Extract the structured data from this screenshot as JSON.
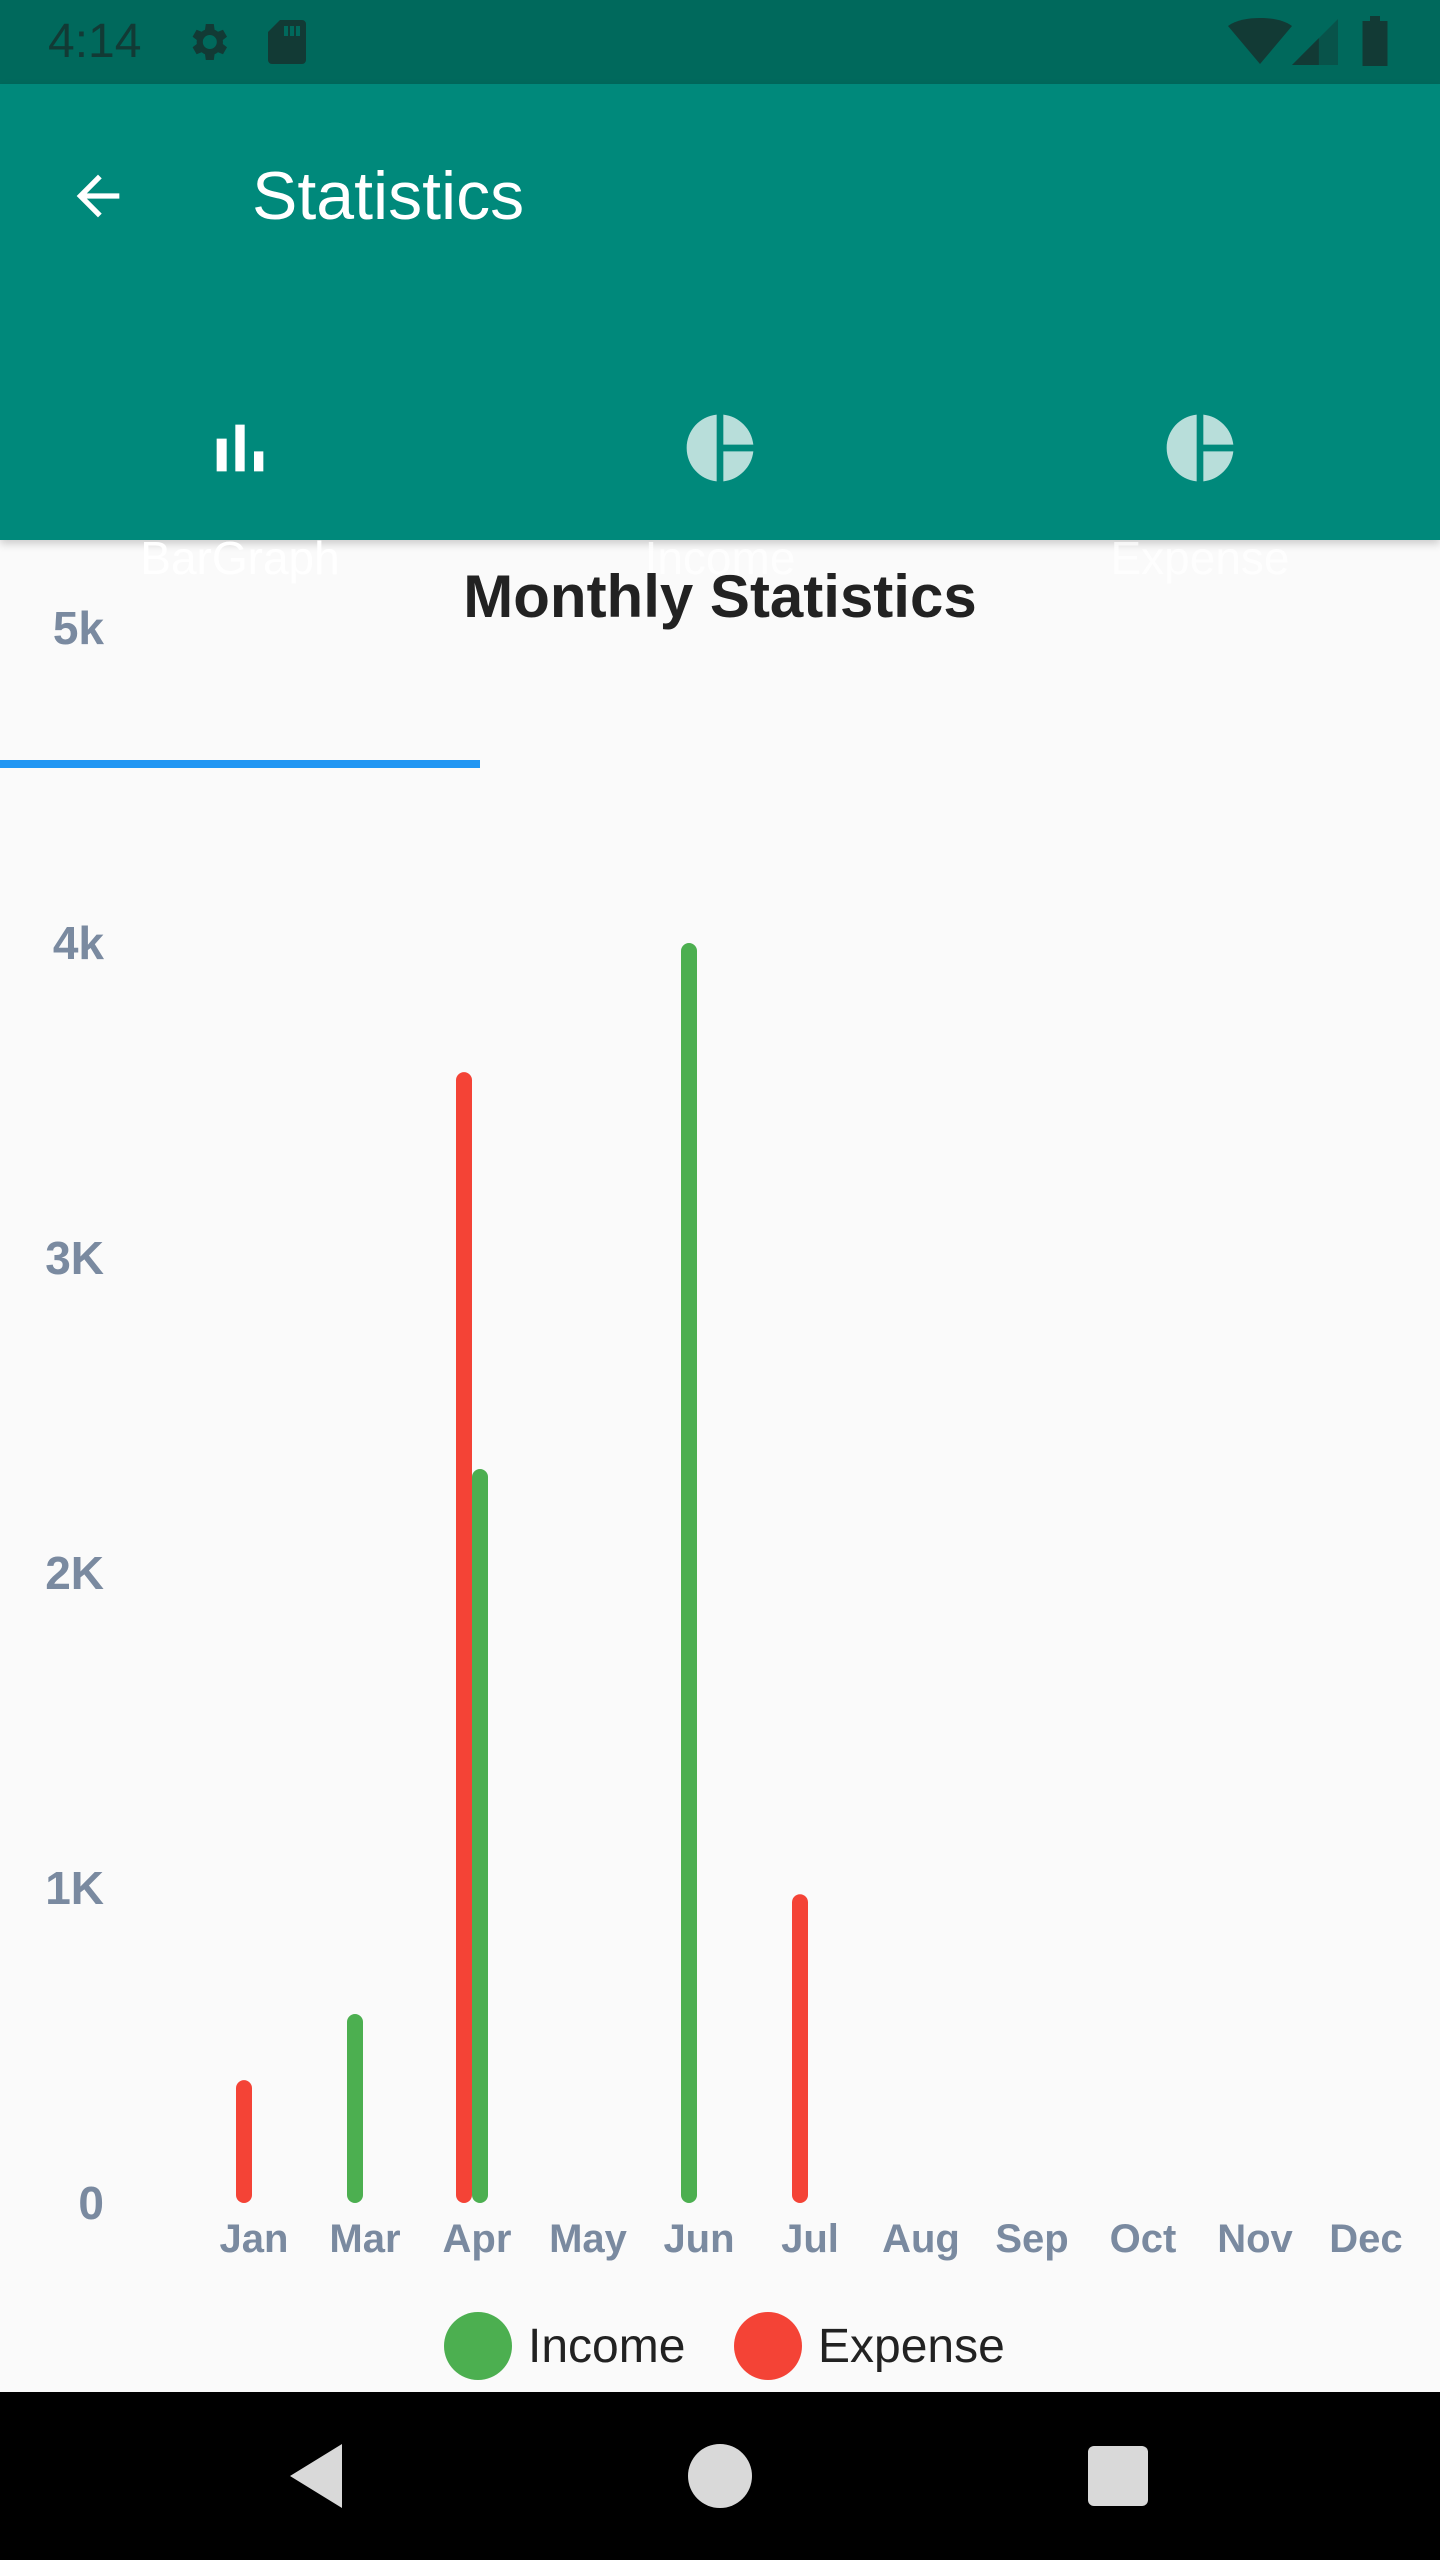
{
  "status_bar": {
    "time": "4:14",
    "icons": [
      "gear-icon",
      "sd-card-icon",
      "wifi-icon",
      "signal-icon",
      "battery-icon"
    ]
  },
  "app_bar": {
    "title": "Statistics",
    "back_icon": "arrow-back-icon",
    "color": "#00897b"
  },
  "tabs": [
    {
      "label": "BarGraph",
      "icon": "bar-chart-icon",
      "active": true
    },
    {
      "label": "Income",
      "icon": "pie-chart-icon",
      "active": false
    },
    {
      "label": "Expense",
      "icon": "pie-chart-icon",
      "active": false
    }
  ],
  "chart_data": {
    "type": "bar",
    "title": "Monthly Statistics",
    "categories": [
      "Jan",
      "Mar",
      "Apr",
      "May",
      "Jun",
      "Jul",
      "Aug",
      "Sep",
      "Oct",
      "Nov",
      "Dec"
    ],
    "y_tick_labels": [
      "0",
      "1K",
      "2K",
      "3K",
      "4k",
      "5k"
    ],
    "ylim": [
      0,
      5000
    ],
    "grid": false,
    "legend_position": "bottom",
    "series": [
      {
        "name": "Income",
        "color": "#4caf50",
        "values": [
          null,
          600,
          2330,
          null,
          4000,
          null,
          null,
          null,
          null,
          null,
          null
        ]
      },
      {
        "name": "Expense",
        "color": "#f44336",
        "values": [
          390,
          null,
          3590,
          null,
          null,
          980,
          null,
          null,
          null,
          null,
          null
        ]
      }
    ]
  },
  "nav_bar": {
    "buttons": [
      "back-triangle-icon",
      "home-circle-icon",
      "recents-square-icon"
    ]
  }
}
